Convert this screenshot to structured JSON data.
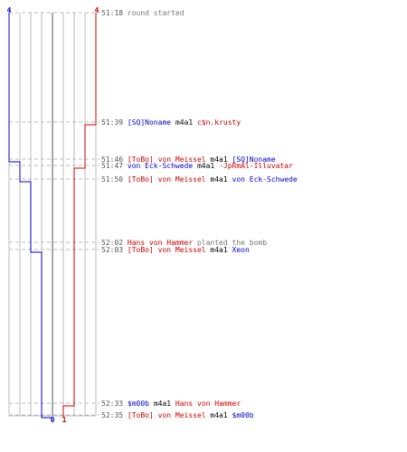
{
  "chart_data": {
    "type": "step-line",
    "start_counts": {
      "blue": "4",
      "red": "4"
    },
    "end_counts": {
      "blue": "0",
      "red": "1"
    },
    "colors": {
      "blue_team": "#0000cc",
      "red_team": "#cc0000",
      "event_text": "#000000",
      "info_text": "#777777"
    },
    "events": [
      {
        "time": "51:18",
        "parts": [
          {
            "text": "round started",
            "color": "#777777"
          }
        ]
      },
      {
        "time": "51:39",
        "parts": [
          {
            "text": "[SQ]Noname",
            "color": "#0000cc"
          },
          {
            "text": " m4a1 ",
            "color": "#000000"
          },
          {
            "text": "c$n.krusty",
            "color": "#cc0000"
          }
        ]
      },
      {
        "time": "51:46",
        "parts": [
          {
            "text": "[ToBo] von Meissel",
            "color": "#cc0000"
          },
          {
            "text": " m4a1 ",
            "color": "#000000"
          },
          {
            "text": "[SQ]Noname",
            "color": "#0000cc"
          }
        ]
      },
      {
        "time": "51:47",
        "parts": [
          {
            "text": "von Eck-Schwede",
            "color": "#0000cc"
          },
          {
            "text": " m4a1 ",
            "color": "#000000"
          },
          {
            "text": "-JpRmAl-Illuvatar",
            "color": "#cc0000"
          }
        ]
      },
      {
        "time": "51:50",
        "parts": [
          {
            "text": "[ToBo] von Meissel",
            "color": "#cc0000"
          },
          {
            "text": " m4a1 ",
            "color": "#000000"
          },
          {
            "text": "von Eck-Schwede",
            "color": "#0000cc"
          }
        ]
      },
      {
        "time": "52:02",
        "parts": [
          {
            "text": "Hans von Hammer",
            "color": "#cc0000"
          },
          {
            "text": " planted the bomb",
            "color": "#777777"
          }
        ]
      },
      {
        "time": "52:03",
        "parts": [
          {
            "text": "[ToBo] von Meissel",
            "color": "#cc0000"
          },
          {
            "text": " m4a1 ",
            "color": "#000000"
          },
          {
            "text": "Xeon",
            "color": "#0000cc"
          }
        ]
      },
      {
        "time": "52:33",
        "parts": [
          {
            "text": "$m00b",
            "color": "#0000cc"
          },
          {
            "text": " m4a1 ",
            "color": "#000000"
          },
          {
            "text": "Hans von Hammer",
            "color": "#cc0000"
          }
        ]
      },
      {
        "time": "52:35",
        "parts": [
          {
            "text": "[ToBo] von Meissel",
            "color": "#cc0000"
          },
          {
            "text": " m4a1 ",
            "color": "#000000"
          },
          {
            "text": "$m00b",
            "color": "#0000cc"
          }
        ]
      }
    ]
  }
}
